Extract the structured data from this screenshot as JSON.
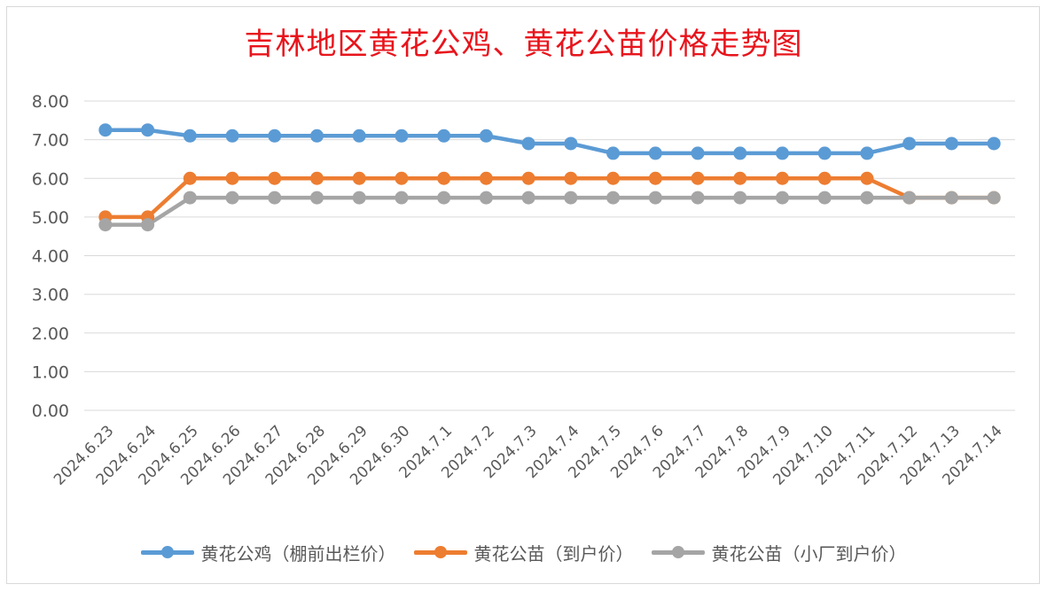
{
  "chart_data": {
    "type": "line",
    "title": "吉林地区黄花公鸡、黄花公苗价格走势图",
    "categories": [
      "2024.6.23",
      "2024.6.24",
      "2024.6.25",
      "2024.6.26",
      "2024.6.27",
      "2024.6.28",
      "2024.6.29",
      "2024.6.30",
      "2024.7.1",
      "2024.7.2",
      "2024.7.3",
      "2024.7.4",
      "2024.7.5",
      "2024.7.6",
      "2024.7.7",
      "2024.7.8",
      "2024.7.9",
      "2024.7.10",
      "2024.7.11",
      "2024.7.12",
      "2024.7.13",
      "2024.7.14"
    ],
    "series": [
      {
        "name": "黄花公鸡（棚前出栏价）",
        "color": "#5b9bd5",
        "values": [
          7.25,
          7.25,
          7.1,
          7.1,
          7.1,
          7.1,
          7.1,
          7.1,
          7.1,
          7.1,
          6.9,
          6.9,
          6.65,
          6.65,
          6.65,
          6.65,
          6.65,
          6.65,
          6.65,
          6.9,
          6.9,
          6.9
        ]
      },
      {
        "name": "黄花公苗（到户价）",
        "color": "#ed7d31",
        "values": [
          5.0,
          5.0,
          6.0,
          6.0,
          6.0,
          6.0,
          6.0,
          6.0,
          6.0,
          6.0,
          6.0,
          6.0,
          6.0,
          6.0,
          6.0,
          6.0,
          6.0,
          6.0,
          6.0,
          5.5,
          5.5,
          5.5
        ]
      },
      {
        "name": "黄花公苗（小厂到户价）",
        "color": "#a5a5a5",
        "values": [
          4.8,
          4.8,
          5.5,
          5.5,
          5.5,
          5.5,
          5.5,
          5.5,
          5.5,
          5.5,
          5.5,
          5.5,
          5.5,
          5.5,
          5.5,
          5.5,
          5.5,
          5.5,
          5.5,
          5.5,
          5.5,
          5.5
        ]
      }
    ],
    "yticks": [
      "0.00",
      "1.00",
      "2.00",
      "3.00",
      "4.00",
      "5.00",
      "6.00",
      "7.00",
      "8.00"
    ],
    "ylim": [
      0,
      8
    ],
    "grid": true,
    "legend": "bottom"
  }
}
